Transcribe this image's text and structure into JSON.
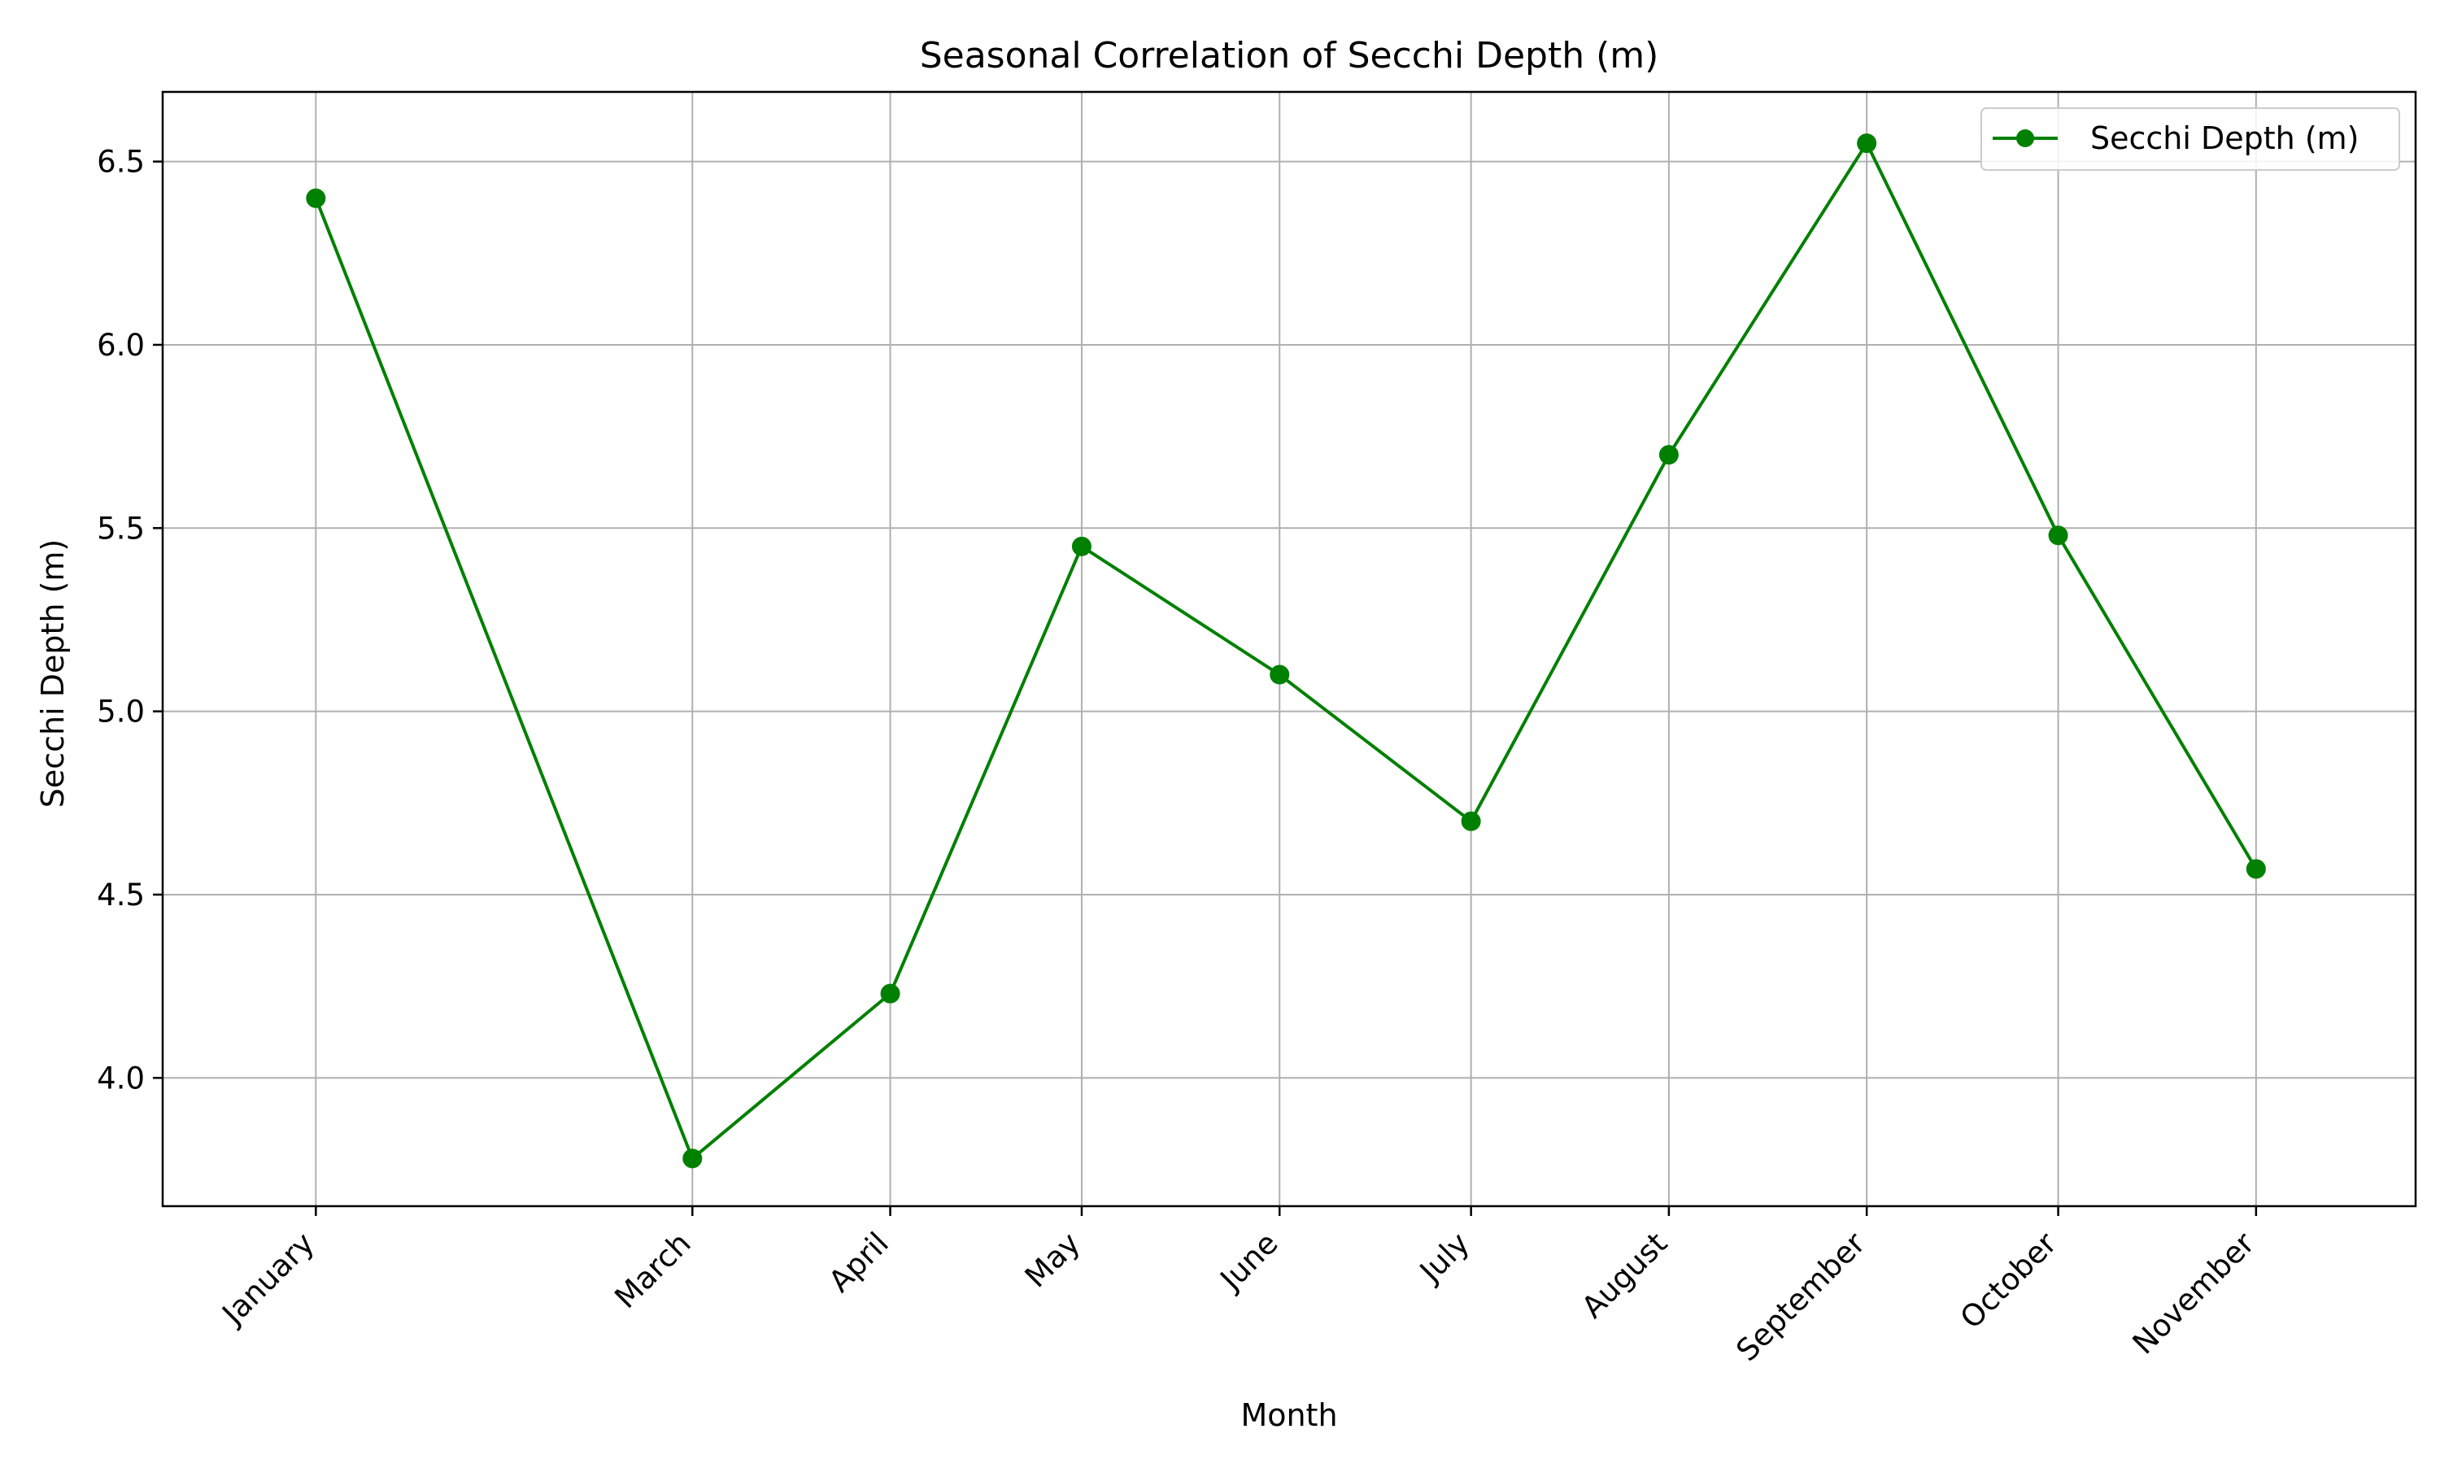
{
  "chart_data": {
    "type": "line",
    "title": "Seasonal Correlation of Secchi Depth (m)",
    "xlabel": "Month",
    "ylabel": "Secchi Depth (m)",
    "x_axis_type": "date",
    "xlim": [
      "2022-12-22",
      "2023-12-10"
    ],
    "ylim": [
      3.65,
      6.69
    ],
    "categories": [
      "January",
      "March",
      "April",
      "May",
      "June",
      "July",
      "August",
      "September",
      "October",
      "November"
    ],
    "x": [
      "2023-01-15",
      "2023-03-15",
      "2023-04-15",
      "2023-05-15",
      "2023-06-15",
      "2023-07-15",
      "2023-08-15",
      "2023-09-15",
      "2023-10-15",
      "2023-11-15"
    ],
    "series": [
      {
        "name": "Secchi Depth (m)",
        "values": [
          6.4,
          3.78,
          4.23,
          5.45,
          5.1,
          4.7,
          5.7,
          6.55,
          5.48,
          4.57
        ],
        "color": "#008000",
        "marker": "circle"
      }
    ],
    "yticks": [
      4.0,
      4.5,
      5.0,
      5.5,
      6.0,
      6.5
    ],
    "ytick_labels": [
      "4.0",
      "4.5",
      "5.0",
      "5.5",
      "6.0",
      "6.5"
    ],
    "grid": true,
    "legend_position": "top-right",
    "x_tick_rotation": 45
  }
}
